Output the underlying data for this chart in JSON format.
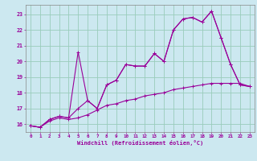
{
  "xlabel": "Windchill (Refroidissement éolien,°C)",
  "bg_color": "#cce8f0",
  "line_color": "#990099",
  "grid_color": "#99ccbb",
  "xlim": [
    -0.5,
    23.5
  ],
  "ylim": [
    15.5,
    23.6
  ],
  "xticks": [
    0,
    1,
    2,
    3,
    4,
    5,
    6,
    7,
    8,
    9,
    10,
    11,
    12,
    13,
    14,
    15,
    16,
    17,
    18,
    19,
    20,
    21,
    22,
    23
  ],
  "yticks": [
    16,
    17,
    18,
    19,
    20,
    21,
    22,
    23
  ],
  "line1_x": [
    0,
    1,
    2,
    3,
    4,
    5,
    6,
    7,
    8,
    9,
    10,
    11,
    12,
    13,
    14,
    15,
    16,
    17,
    18,
    19,
    20,
    21,
    22,
    23
  ],
  "line1_y": [
    15.9,
    15.8,
    16.3,
    16.5,
    16.4,
    17.0,
    17.5,
    17.0,
    18.5,
    18.8,
    19.8,
    19.7,
    19.7,
    20.5,
    20.0,
    22.0,
    22.7,
    22.8,
    22.5,
    23.2,
    21.5,
    19.8,
    18.5,
    18.4
  ],
  "line2_x": [
    0,
    1,
    2,
    3,
    4,
    5,
    6,
    7,
    8,
    9,
    10,
    11,
    12,
    13,
    14,
    15,
    16,
    17,
    18,
    19,
    20,
    21,
    22,
    23
  ],
  "line2_y": [
    15.9,
    15.8,
    16.3,
    16.5,
    16.4,
    20.6,
    17.5,
    17.0,
    18.5,
    18.8,
    19.8,
    19.7,
    19.7,
    20.5,
    20.0,
    22.0,
    22.7,
    22.8,
    22.5,
    23.2,
    21.5,
    19.8,
    18.5,
    18.4
  ],
  "line3_x": [
    0,
    1,
    2,
    3,
    4,
    5,
    6,
    7,
    8,
    9,
    10,
    11,
    12,
    13,
    14,
    15,
    16,
    17,
    18,
    19,
    20,
    21,
    22,
    23
  ],
  "line3_y": [
    15.9,
    15.8,
    16.2,
    16.4,
    16.3,
    16.4,
    16.6,
    16.9,
    17.2,
    17.3,
    17.5,
    17.6,
    17.8,
    17.9,
    18.0,
    18.2,
    18.3,
    18.4,
    18.5,
    18.6,
    18.6,
    18.6,
    18.6,
    18.4
  ]
}
